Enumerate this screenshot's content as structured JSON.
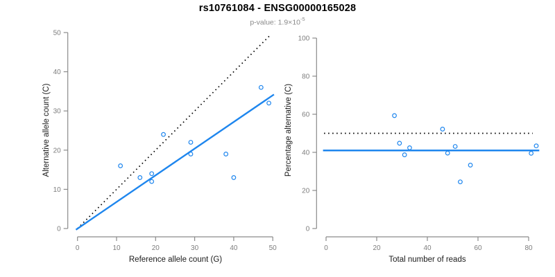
{
  "header": {
    "title": "rs10761084 - ENSG00000165028",
    "p_value_label": "p-value: 1.9×10",
    "p_value_exponent": "-5"
  },
  "colors": {
    "point_blue": "#1e86ee",
    "fit_blue": "#1e86ee",
    "dotted_black": "#000000",
    "axis_gray": "#8a8a8a",
    "tick_label_gray": "#7d7d7d",
    "axis_title_black": "#1a1a1a",
    "subtitle_gray": "#8a8a8a"
  },
  "chart_data": [
    {
      "type": "scatter",
      "name": "allele-counts-scatter",
      "xlabel": "Reference allele count (G)",
      "ylabel": "Alternative allele count (C)",
      "xlim": [
        0,
        50
      ],
      "ylim": [
        0,
        50
      ],
      "xticks": [
        0,
        10,
        20,
        30,
        40,
        50
      ],
      "yticks": [
        0,
        10,
        20,
        30,
        40,
        50
      ],
      "grid": false,
      "legend": null,
      "points": [
        [
          11,
          16
        ],
        [
          16,
          13
        ],
        [
          19,
          12
        ],
        [
          19,
          14
        ],
        [
          22,
          24
        ],
        [
          29,
          19
        ],
        [
          29,
          22
        ],
        [
          38,
          19
        ],
        [
          40,
          13
        ],
        [
          47,
          36
        ],
        [
          49,
          32
        ]
      ],
      "lines": [
        {
          "name": "identity-line",
          "style": "dotted",
          "color": "#000000",
          "x1": 0,
          "y1": 0,
          "x2": 49.2,
          "y2": 49.2
        },
        {
          "name": "fit-line",
          "style": "solid",
          "color": "#1e86ee",
          "x1": -0.4,
          "y1": -0.3,
          "x2": 50.3,
          "y2": 34.2
        }
      ]
    },
    {
      "type": "scatter",
      "name": "percentage-alternative-scatter",
      "xlabel": "Total number of reads",
      "ylabel": "Percentage alternative (C)",
      "xlim": [
        0,
        80
      ],
      "ylim": [
        0,
        100
      ],
      "xticks": [
        0,
        20,
        40,
        60,
        80
      ],
      "yticks": [
        0,
        20,
        40,
        60,
        80,
        100
      ],
      "grid": false,
      "legend": null,
      "points": [
        [
          27,
          59.3
        ],
        [
          29,
          44.8
        ],
        [
          31,
          38.7
        ],
        [
          33,
          42.4
        ],
        [
          46,
          52.2
        ],
        [
          48,
          39.6
        ],
        [
          51,
          43.1
        ],
        [
          53,
          24.5
        ],
        [
          57,
          33.3
        ],
        [
          81,
          39.5
        ],
        [
          83,
          43.4
        ]
      ],
      "lines": [
        {
          "name": "expected-50pct-line",
          "style": "dotted",
          "color": "#000000",
          "x1": -0.8,
          "y1": 50,
          "x2": 81.6,
          "y2": 50
        },
        {
          "name": "mean-percentage-line",
          "style": "solid",
          "color": "#1e86ee",
          "x1": -1.2,
          "y1": 41,
          "x2": 84.2,
          "y2": 41
        }
      ]
    }
  ]
}
